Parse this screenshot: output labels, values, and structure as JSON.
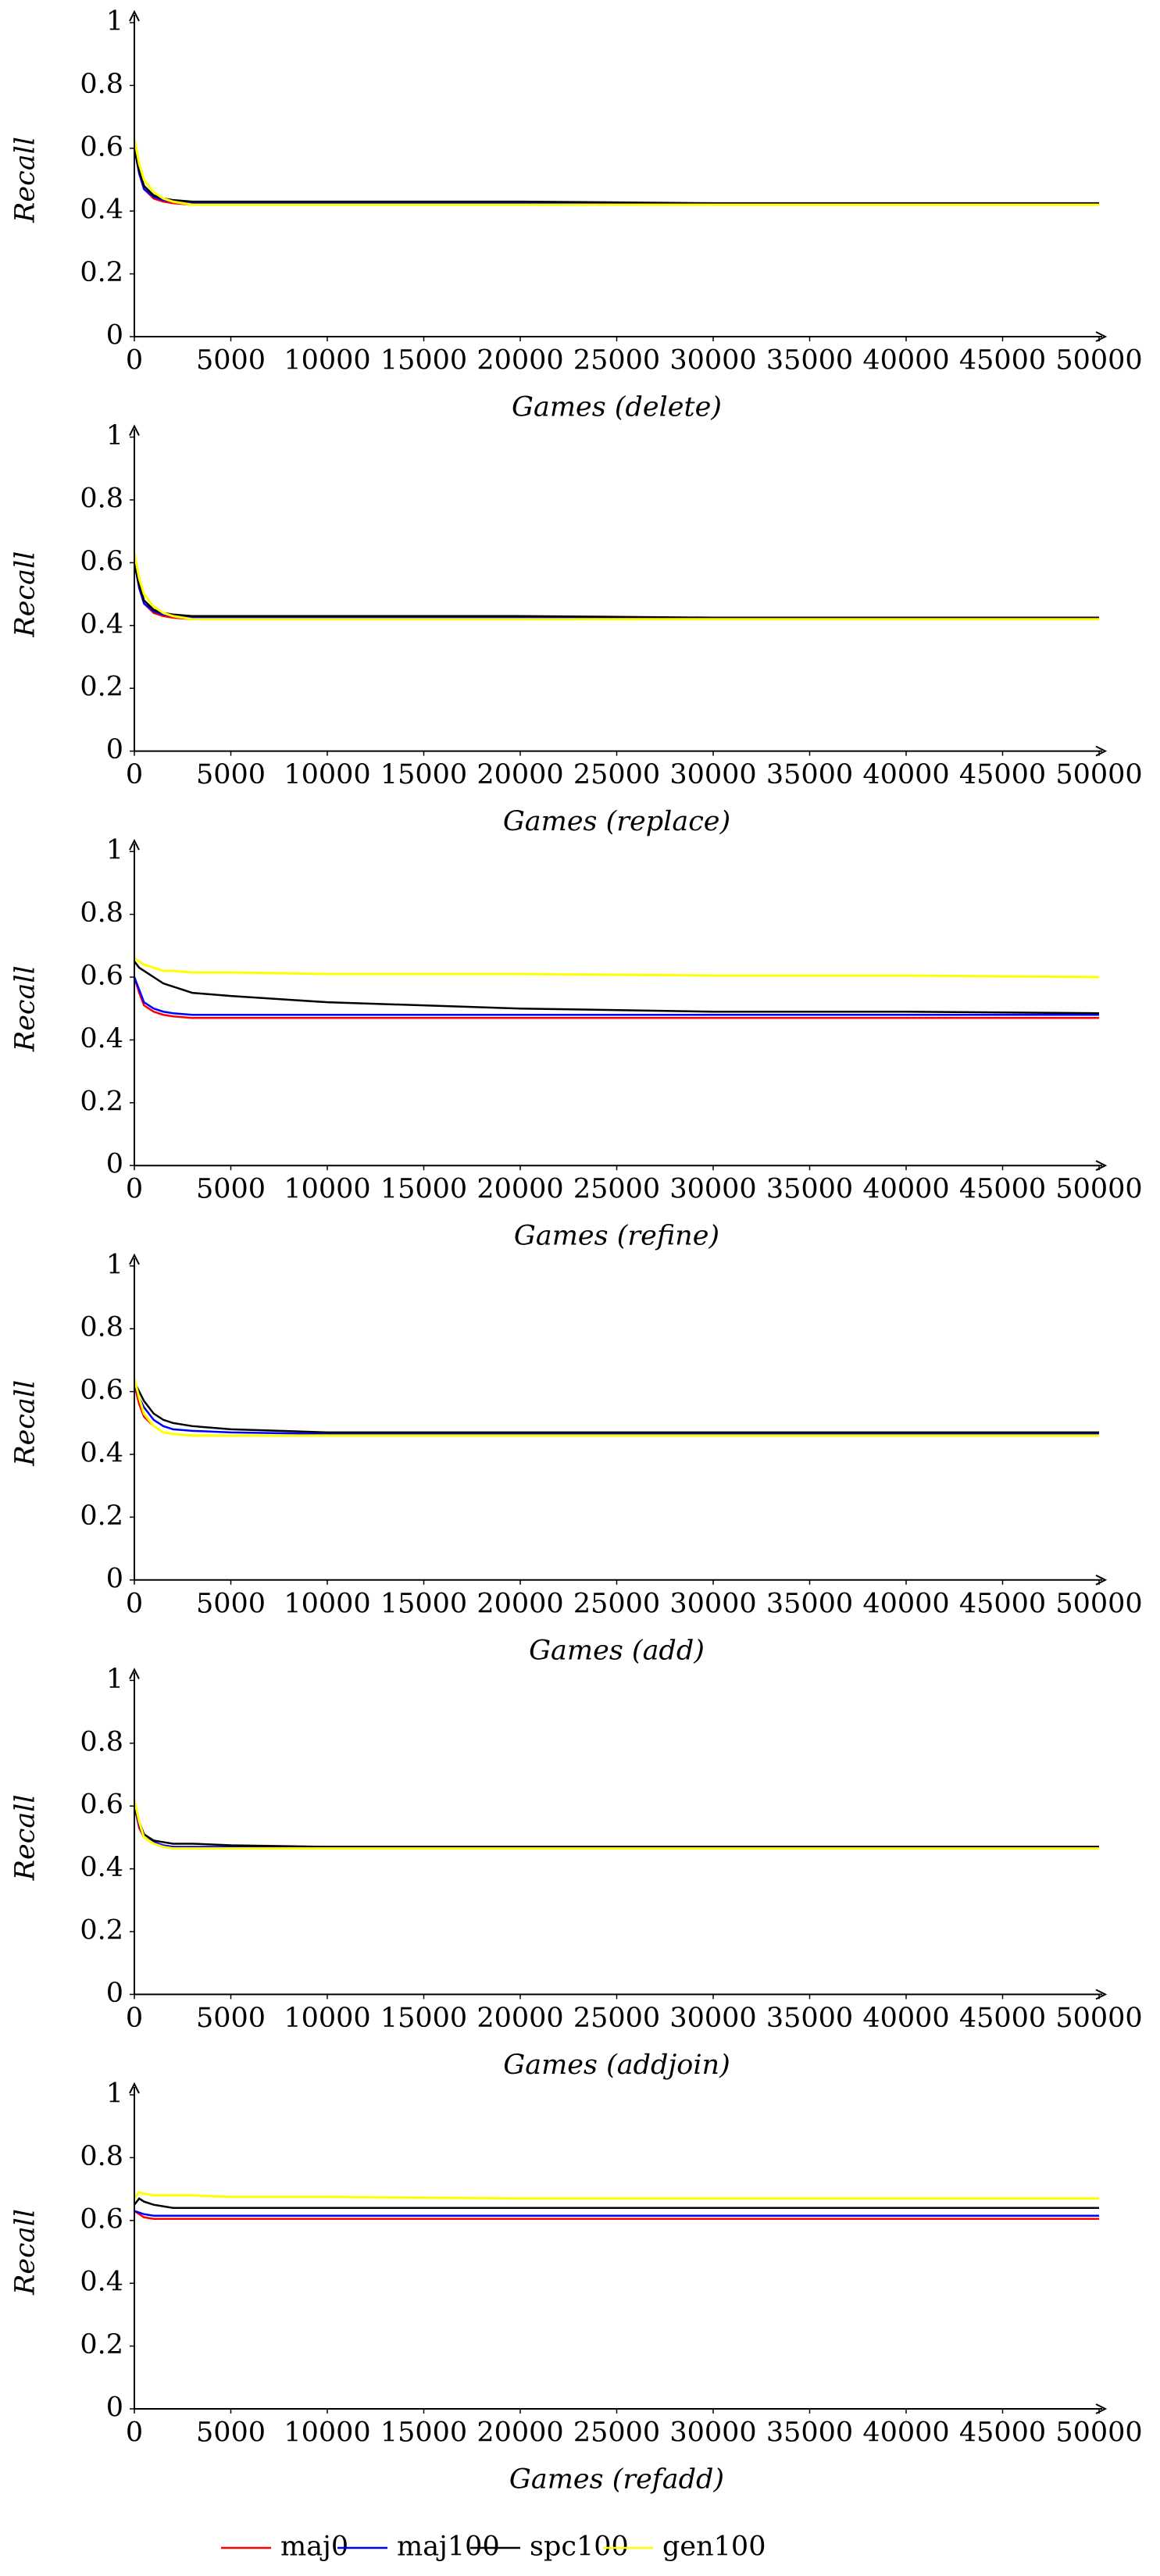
{
  "legend": {
    "series": [
      {
        "name": "maj0",
        "color": "#ff0000"
      },
      {
        "name": "maj100",
        "color": "#0000ff"
      },
      {
        "name": "spc100",
        "color": "#000000"
      },
      {
        "name": "gen100",
        "color": "#ffff00"
      }
    ]
  },
  "chart_data": [
    {
      "type": "line",
      "ylabel": "Recall",
      "xlabel": "Games (delete)",
      "xlim": [
        0,
        50000
      ],
      "ylim": [
        0,
        1
      ],
      "xticks": [
        0,
        5000,
        10000,
        15000,
        20000,
        25000,
        30000,
        35000,
        40000,
        45000,
        50000
      ],
      "yticks": [
        0,
        0.2,
        0.4,
        0.6,
        0.8,
        1
      ],
      "x": [
        0,
        250,
        500,
        1000,
        1500,
        2000,
        3000,
        5000,
        10000,
        20000,
        30000,
        40000,
        50000
      ],
      "series": [
        {
          "values": [
            0.6,
            0.52,
            0.47,
            0.44,
            0.43,
            0.425,
            0.42,
            0.42,
            0.42,
            0.42,
            0.42,
            0.42,
            0.42
          ]
        },
        {
          "values": [
            0.6,
            0.52,
            0.47,
            0.445,
            0.435,
            0.43,
            0.425,
            0.425,
            0.425,
            0.425,
            0.42,
            0.42,
            0.42
          ]
        },
        {
          "values": [
            0.6,
            0.53,
            0.48,
            0.45,
            0.44,
            0.435,
            0.43,
            0.43,
            0.43,
            0.43,
            0.425,
            0.425,
            0.425
          ]
        },
        {
          "values": [
            0.63,
            0.55,
            0.5,
            0.46,
            0.44,
            0.43,
            0.42,
            0.42,
            0.42,
            0.42,
            0.42,
            0.42,
            0.42
          ]
        }
      ]
    },
    {
      "type": "line",
      "ylabel": "Recall",
      "xlabel": "Games (replace)",
      "xlim": [
        0,
        50000
      ],
      "ylim": [
        0,
        1
      ],
      "xticks": [
        0,
        5000,
        10000,
        15000,
        20000,
        25000,
        30000,
        35000,
        40000,
        45000,
        50000
      ],
      "yticks": [
        0,
        0.2,
        0.4,
        0.6,
        0.8,
        1
      ],
      "x": [
        0,
        250,
        500,
        1000,
        1500,
        2000,
        3000,
        5000,
        10000,
        20000,
        30000,
        40000,
        50000
      ],
      "series": [
        {
          "values": [
            0.6,
            0.52,
            0.47,
            0.44,
            0.43,
            0.425,
            0.42,
            0.42,
            0.42,
            0.42,
            0.42,
            0.42,
            0.42
          ]
        },
        {
          "values": [
            0.6,
            0.52,
            0.47,
            0.445,
            0.435,
            0.43,
            0.425,
            0.425,
            0.425,
            0.425,
            0.42,
            0.42,
            0.42
          ]
        },
        {
          "values": [
            0.6,
            0.53,
            0.48,
            0.45,
            0.44,
            0.435,
            0.43,
            0.43,
            0.43,
            0.43,
            0.425,
            0.425,
            0.425
          ]
        },
        {
          "values": [
            0.63,
            0.55,
            0.5,
            0.46,
            0.44,
            0.43,
            0.42,
            0.42,
            0.42,
            0.42,
            0.42,
            0.42,
            0.42
          ]
        }
      ]
    },
    {
      "type": "line",
      "ylabel": "Recall",
      "xlabel": "Games (refine)",
      "xlim": [
        0,
        50000
      ],
      "ylim": [
        0,
        1
      ],
      "xticks": [
        0,
        5000,
        10000,
        15000,
        20000,
        25000,
        30000,
        35000,
        40000,
        45000,
        50000
      ],
      "yticks": [
        0,
        0.2,
        0.4,
        0.6,
        0.8,
        1
      ],
      "x": [
        0,
        250,
        500,
        1000,
        1500,
        2000,
        3000,
        5000,
        10000,
        20000,
        30000,
        40000,
        50000
      ],
      "series": [
        {
          "values": [
            0.6,
            0.55,
            0.51,
            0.49,
            0.48,
            0.475,
            0.47,
            0.47,
            0.47,
            0.47,
            0.47,
            0.47,
            0.47
          ]
        },
        {
          "values": [
            0.6,
            0.56,
            0.52,
            0.5,
            0.49,
            0.485,
            0.48,
            0.48,
            0.48,
            0.48,
            0.48,
            0.48,
            0.48
          ]
        },
        {
          "values": [
            0.65,
            0.63,
            0.62,
            0.6,
            0.58,
            0.57,
            0.55,
            0.54,
            0.52,
            0.5,
            0.49,
            0.49,
            0.485
          ]
        },
        {
          "values": [
            0.66,
            0.65,
            0.64,
            0.63,
            0.62,
            0.62,
            0.615,
            0.615,
            0.61,
            0.61,
            0.605,
            0.605,
            0.6
          ]
        }
      ]
    },
    {
      "type": "line",
      "ylabel": "Recall",
      "xlabel": "Games (add)",
      "xlim": [
        0,
        50000
      ],
      "ylim": [
        0,
        1
      ],
      "xticks": [
        0,
        5000,
        10000,
        15000,
        20000,
        25000,
        30000,
        35000,
        40000,
        45000,
        50000
      ],
      "yticks": [
        0,
        0.2,
        0.4,
        0.6,
        0.8,
        1
      ],
      "x": [
        0,
        250,
        500,
        1000,
        1500,
        2000,
        3000,
        5000,
        10000,
        20000,
        30000,
        40000,
        50000
      ],
      "series": [
        {
          "values": [
            0.62,
            0.56,
            0.52,
            0.49,
            0.47,
            0.465,
            0.46,
            0.46,
            0.46,
            0.46,
            0.46,
            0.46,
            0.46
          ]
        },
        {
          "values": [
            0.62,
            0.58,
            0.55,
            0.51,
            0.49,
            0.48,
            0.475,
            0.47,
            0.465,
            0.465,
            0.465,
            0.465,
            0.465
          ]
        },
        {
          "values": [
            0.63,
            0.6,
            0.57,
            0.53,
            0.51,
            0.5,
            0.49,
            0.48,
            0.47,
            0.47,
            0.47,
            0.47,
            0.47
          ]
        },
        {
          "values": [
            0.64,
            0.58,
            0.53,
            0.49,
            0.47,
            0.465,
            0.46,
            0.46,
            0.46,
            0.46,
            0.46,
            0.46,
            0.46
          ]
        }
      ]
    },
    {
      "type": "line",
      "ylabel": "Recall",
      "xlabel": "Games (addjoin)",
      "xlim": [
        0,
        50000
      ],
      "ylim": [
        0,
        1
      ],
      "xticks": [
        0,
        5000,
        10000,
        15000,
        20000,
        25000,
        30000,
        35000,
        40000,
        45000,
        50000
      ],
      "yticks": [
        0,
        0.2,
        0.4,
        0.6,
        0.8,
        1
      ],
      "x": [
        0,
        250,
        500,
        1000,
        1500,
        2000,
        3000,
        5000,
        10000,
        20000,
        30000,
        40000,
        50000
      ],
      "series": [
        {
          "values": [
            0.6,
            0.53,
            0.5,
            0.48,
            0.47,
            0.47,
            0.465,
            0.465,
            0.47,
            0.47,
            0.47,
            0.47,
            0.47
          ]
        },
        {
          "values": [
            0.6,
            0.54,
            0.5,
            0.485,
            0.475,
            0.47,
            0.47,
            0.47,
            0.47,
            0.47,
            0.47,
            0.47,
            0.47
          ]
        },
        {
          "values": [
            0.6,
            0.55,
            0.51,
            0.49,
            0.485,
            0.48,
            0.48,
            0.475,
            0.47,
            0.47,
            0.47,
            0.47,
            0.47
          ]
        },
        {
          "values": [
            0.62,
            0.55,
            0.5,
            0.48,
            0.47,
            0.465,
            0.465,
            0.465,
            0.465,
            0.465,
            0.465,
            0.465,
            0.465
          ]
        }
      ]
    },
    {
      "type": "line",
      "ylabel": "Recall",
      "xlabel": "Games (refadd)",
      "xlim": [
        0,
        50000
      ],
      "ylim": [
        0,
        1
      ],
      "xticks": [
        0,
        5000,
        10000,
        15000,
        20000,
        25000,
        30000,
        35000,
        40000,
        45000,
        50000
      ],
      "yticks": [
        0,
        0.2,
        0.4,
        0.6,
        0.8,
        1
      ],
      "x": [
        0,
        250,
        500,
        1000,
        1500,
        2000,
        3000,
        5000,
        10000,
        20000,
        30000,
        40000,
        50000
      ],
      "series": [
        {
          "values": [
            0.63,
            0.62,
            0.61,
            0.605,
            0.605,
            0.605,
            0.605,
            0.605,
            0.605,
            0.605,
            0.605,
            0.605,
            0.605
          ]
        },
        {
          "values": [
            0.63,
            0.625,
            0.62,
            0.615,
            0.615,
            0.615,
            0.615,
            0.615,
            0.615,
            0.615,
            0.615,
            0.615,
            0.615
          ]
        },
        {
          "values": [
            0.65,
            0.67,
            0.66,
            0.65,
            0.645,
            0.64,
            0.64,
            0.64,
            0.64,
            0.64,
            0.64,
            0.64,
            0.64
          ]
        },
        {
          "values": [
            0.67,
            0.69,
            0.685,
            0.68,
            0.68,
            0.68,
            0.68,
            0.675,
            0.675,
            0.67,
            0.67,
            0.67,
            0.67
          ]
        }
      ]
    }
  ]
}
